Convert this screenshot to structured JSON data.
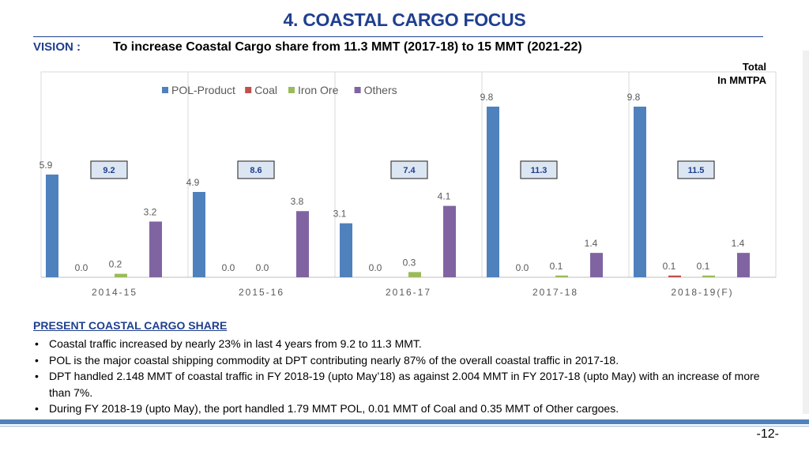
{
  "header": {
    "title": "4. COASTAL CARGO FOCUS",
    "vision_label": "VISION :",
    "vision_text": "To increase Coastal Cargo share from 11.3 MMT (2017-18) to 15 MMT (2021-22)",
    "total_label_line1": "Total",
    "total_label_line2": "In MMTPA"
  },
  "colors": {
    "title": "#1f3f8f",
    "pol": "#4f81bd",
    "coal": "#c0504d",
    "iron_ore": "#9bbb59",
    "others": "#8064a2"
  },
  "chart_data": {
    "type": "bar",
    "categories": [
      "2014-15",
      "2015-16",
      "2016-17",
      "2017-18",
      "2018-19(F)"
    ],
    "series": [
      {
        "name": "POL-Product",
        "values": [
          5.9,
          4.9,
          3.1,
          9.8,
          9.8
        ]
      },
      {
        "name": "Coal",
        "values": [
          0.0,
          0.0,
          0.0,
          0.0,
          0.1
        ]
      },
      {
        "name": "Iron Ore",
        "values": [
          0.2,
          0.0,
          0.3,
          0.1,
          0.1
        ]
      },
      {
        "name": "Others",
        "values": [
          3.2,
          3.8,
          4.1,
          1.4,
          1.4
        ]
      }
    ],
    "totals": [
      "9.2",
      "8.6",
      "7.4",
      "11.3",
      "11.5"
    ],
    "ylim": [
      0,
      11
    ],
    "legend_position": "top-left",
    "grid": false
  },
  "section": {
    "heading": "PRESENT COASTAL CARGO SHARE",
    "bullets": [
      "Coastal traffic increased by nearly 23% in last 4 years from 9.2 to 11.3 MMT.",
      "POL is the major coastal shipping commodity at DPT contributing nearly 87% of the overall coastal traffic in 2017-18.",
      "DPT handled 2.148 MMT of coastal traffic in FY 2018-19 (upto May’18) as against 2.004 MMT in FY 2017-18 (upto May) with an increase of more than 7%.",
      "During FY 2018-19 (upto May), the port handled 1.79 MMT POL, 0.01 MMT of Coal and 0.35 MMT of Other cargoes."
    ]
  },
  "footer": {
    "page_number": "-12-"
  }
}
